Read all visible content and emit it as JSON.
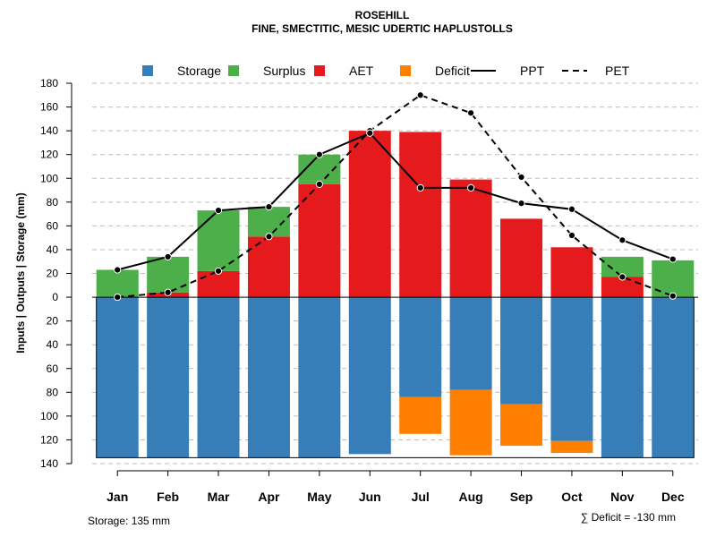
{
  "chart_data": {
    "type": "bar",
    "title": "ROSEHILL",
    "subtitle": "FINE, SMECTITIC, MESIC UDERTIC HAPLUSTOLLS",
    "ylabel": "Inputs | Outputs | Storage    (mm)",
    "categories": [
      "Jan",
      "Feb",
      "Mar",
      "Apr",
      "May",
      "Jun",
      "Jul",
      "Aug",
      "Sep",
      "Oct",
      "Nov",
      "Dec"
    ],
    "ylim": [
      -140,
      180
    ],
    "yticks": [
      180,
      160,
      140,
      120,
      100,
      80,
      60,
      40,
      20,
      0,
      -20,
      -40,
      -60,
      -80,
      -100,
      -120,
      -140
    ],
    "ytick_labels": [
      "180",
      "160",
      "140",
      "120",
      "100",
      "80",
      "60",
      "40",
      "20",
      "0",
      "20",
      "40",
      "60",
      "80",
      "100",
      "120",
      "140"
    ],
    "grid": true,
    "legend_position": "top",
    "legend": [
      {
        "label": "Storage",
        "kind": "box",
        "color": "#377EB8"
      },
      {
        "label": "Surplus",
        "kind": "box",
        "color": "#4DAF4A"
      },
      {
        "label": "AET",
        "kind": "box",
        "color": "#E41A1C"
      },
      {
        "label": "Deficit",
        "kind": "box",
        "color": "#FF7F00"
      },
      {
        "label": "PPT",
        "kind": "solid-line",
        "color": "#000000"
      },
      {
        "label": "PET",
        "kind": "dashed-line",
        "color": "#000000"
      }
    ],
    "series": [
      {
        "name": "Storage",
        "color": "#377EB8",
        "values": [
          135,
          135,
          135,
          135,
          135,
          132,
          84,
          78,
          90,
          121,
          135,
          135
        ]
      },
      {
        "name": "Deficit",
        "color": "#FF7F00",
        "values": [
          0,
          0,
          0,
          0,
          0,
          0,
          31,
          55,
          35,
          10,
          0,
          0
        ]
      },
      {
        "name": "AET",
        "color": "#E41A1C",
        "values": [
          0,
          4,
          22,
          51,
          95,
          140,
          139,
          99,
          66,
          42,
          17,
          0
        ]
      },
      {
        "name": "Surplus",
        "color": "#4DAF4A",
        "values": [
          23,
          30,
          51,
          25,
          25,
          0,
          0,
          0,
          0,
          0,
          17,
          31
        ]
      },
      {
        "name": "PPT",
        "color": "#000000",
        "style": "solid",
        "values": [
          23,
          34,
          73,
          76,
          120,
          138,
          92,
          92,
          79,
          74,
          48,
          32
        ]
      },
      {
        "name": "PET",
        "color": "#000000",
        "style": "dashed",
        "values": [
          0,
          4,
          22,
          51,
          95,
          140,
          170,
          155,
          101,
          52,
          17,
          1
        ]
      }
    ],
    "storage_capacity": 135,
    "notes": {
      "storage": "Storage: 135 mm",
      "deficit": "∑ Deficit = -130 mm"
    }
  }
}
